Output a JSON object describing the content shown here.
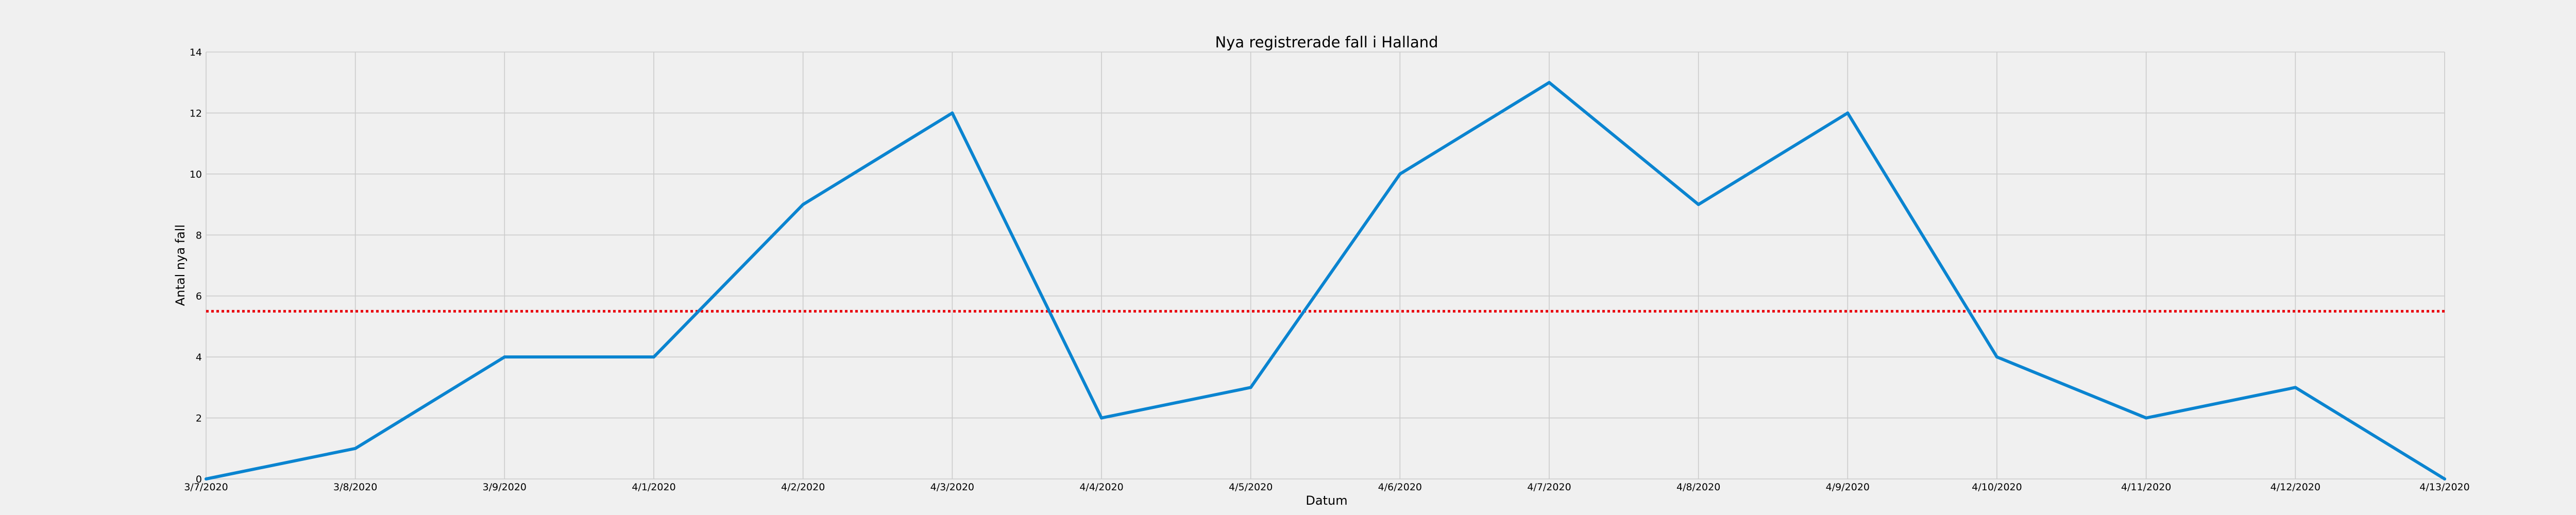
{
  "chart_data": {
    "type": "line",
    "title": "Nya registrerade fall i Halland",
    "xlabel": "Datum",
    "ylabel": "Antal nya fall",
    "categories": [
      "3/7/2020",
      "3/8/2020",
      "3/9/2020",
      "4/1/2020",
      "4/2/2020",
      "4/3/2020",
      "4/4/2020",
      "4/5/2020",
      "4/6/2020",
      "4/7/2020",
      "4/8/2020",
      "4/9/2020",
      "4/10/2020",
      "4/11/2020",
      "4/12/2020",
      "4/13/2020"
    ],
    "series": [
      {
        "values": [
          0,
          1,
          4,
          4,
          9,
          12,
          2,
          3,
          10,
          13,
          9,
          12,
          4,
          2,
          3,
          0
        ],
        "color": "#0a84d0",
        "style": "solid"
      }
    ],
    "reference_line": {
      "y": 5.5,
      "color": "#e8000b",
      "style": "dotted"
    },
    "yticks": [
      0,
      2,
      4,
      6,
      8,
      10,
      12,
      14
    ],
    "ylim": [
      0,
      14
    ],
    "grid": true
  }
}
